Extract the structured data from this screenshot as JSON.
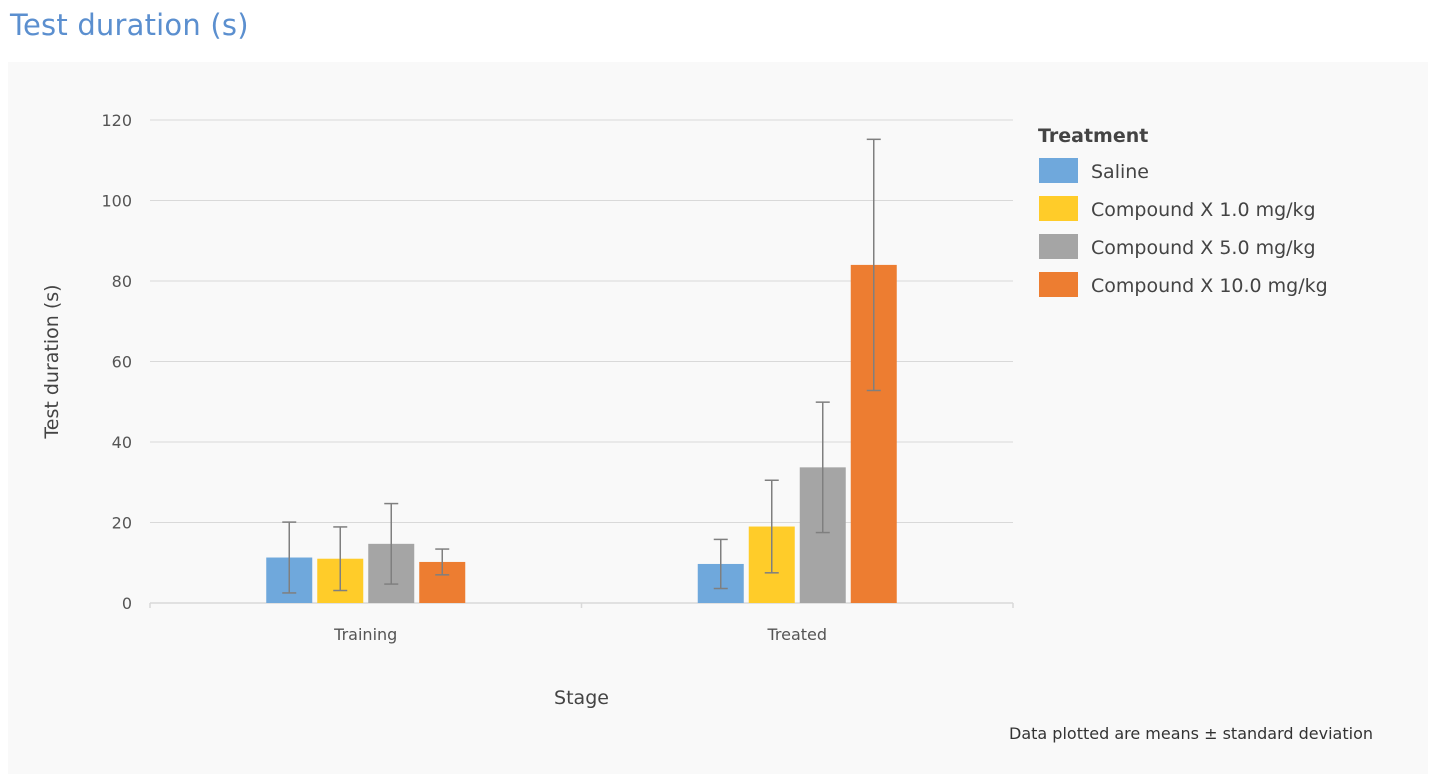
{
  "page": {
    "title": "Test duration (s)",
    "footnote": "Data plotted are means ± standard deviation"
  },
  "chart_data": {
    "type": "bar",
    "categories": [
      "Training",
      "Treated"
    ],
    "series": [
      {
        "name": "Saline",
        "color": "#6fa8dc",
        "values": [
          11.3,
          9.7
        ],
        "error": [
          8.8,
          6.1
        ]
      },
      {
        "name": "Compound X 1.0 mg/kg",
        "color": "#ffcc29",
        "values": [
          11.0,
          19.0
        ],
        "error": [
          7.9,
          11.5
        ]
      },
      {
        "name": "Compound X 5.0 mg/kg",
        "color": "#a5a5a5",
        "values": [
          14.7,
          33.7
        ],
        "error": [
          10.0,
          16.2
        ]
      },
      {
        "name": "Compound X 10.0 mg/kg",
        "color": "#ed7d31",
        "values": [
          10.2,
          84.0
        ],
        "error": [
          3.2,
          31.2
        ]
      }
    ],
    "xlabel": "Stage",
    "ylabel": "Test duration (s)",
    "ylim": [
      0,
      120
    ],
    "yticks": [
      0,
      20,
      40,
      60,
      80,
      100,
      120
    ],
    "grid": true,
    "legend_title": "Treatment",
    "legend_position": "right",
    "error_bar_color": "#7f7f7f",
    "grid_color": "#d9d9d9"
  }
}
